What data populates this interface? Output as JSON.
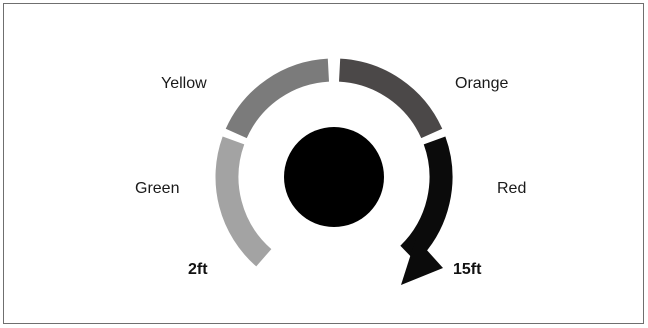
{
  "gauge": {
    "segments": [
      {
        "label": "Green",
        "color": "#a3a3a3"
      },
      {
        "label": "Yellow",
        "color": "#7b7b7b"
      },
      {
        "label": "Orange",
        "color": "#4b4848"
      },
      {
        "label": "Red",
        "color": "#0b0b0b"
      }
    ],
    "start_label": "2ft",
    "end_label": "15ft",
    "hub_color": "#000000",
    "arrow_icon": "arrow-head-icon"
  }
}
